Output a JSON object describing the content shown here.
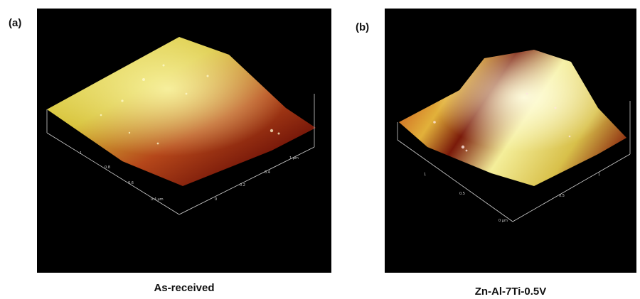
{
  "panels": [
    {
      "label": "(a)",
      "caption": "As-received",
      "scene": "afm-3d-surface",
      "colors": {
        "background": "#000000",
        "high": "#f2f07a",
        "mid": "#d9b21e",
        "low": "#7a1a0a"
      }
    },
    {
      "label": "(b)",
      "caption": "Zn-Al-7Ti-0.5V",
      "scene": "afm-3d-surface",
      "colors": {
        "background": "#000000",
        "high": "#fbf6b0",
        "mid": "#d6b93a",
        "low": "#6e160a"
      }
    }
  ]
}
